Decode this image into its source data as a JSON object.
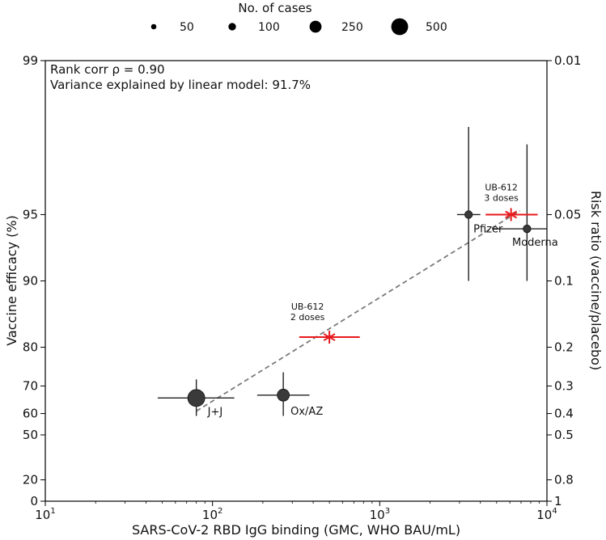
{
  "chart_data": {
    "type": "scatter",
    "x_scale": "log",
    "xlim": [
      10,
      10000
    ],
    "xlabel": "SARS-CoV-2 RBD IgG binding (GMC, WHO BAU/mL)",
    "ylabel": "Vaccine efficacy (%)",
    "ylabel_right": "Risk ratio (vaccine/placebo)",
    "x_ticks": [
      {
        "value": 10,
        "label": "10",
        "exp": "1"
      },
      {
        "value": 100,
        "label": "10",
        "exp": "2"
      },
      {
        "value": 1000,
        "label": "10",
        "exp": "3"
      },
      {
        "value": 10000,
        "label": "10",
        "exp": "4"
      }
    ],
    "y_left_ticks": [
      {
        "value": 99,
        "label": "99"
      },
      {
        "value": 95,
        "label": "95"
      },
      {
        "value": 90,
        "label": "90"
      },
      {
        "value": 80,
        "label": "80"
      },
      {
        "value": 70,
        "label": "70"
      },
      {
        "value": 60,
        "label": "60"
      },
      {
        "value": 50,
        "label": "50"
      },
      {
        "value": 20,
        "label": "20"
      },
      {
        "value": 0,
        "label": "0"
      }
    ],
    "y_right_ticks": [
      {
        "value": 0.01,
        "label": "0.01"
      },
      {
        "value": 0.05,
        "label": "0.05"
      },
      {
        "value": 0.1,
        "label": "0.1"
      },
      {
        "value": 0.2,
        "label": "0.2"
      },
      {
        "value": 0.3,
        "label": "0.3"
      },
      {
        "value": 0.4,
        "label": "0.4"
      },
      {
        "value": 0.5,
        "label": "0.5"
      },
      {
        "value": 0.8,
        "label": "0.8"
      },
      {
        "value": 1,
        "label": "1"
      }
    ],
    "annotations": [
      "Rank corr ρ = 0.90",
      "Variance explained by linear model: 91.7%"
    ],
    "legend": {
      "title": "No. of cases",
      "entries": [
        {
          "label": "50",
          "cases": 50
        },
        {
          "label": "100",
          "cases": 100
        },
        {
          "label": "250",
          "cases": 250
        },
        {
          "label": "500",
          "cases": 500
        }
      ]
    },
    "vaccines": [
      {
        "label": "J+J",
        "gmc": 80,
        "gmc_low": 47,
        "gmc_high": 135,
        "efficacy": 66,
        "eff_low": 59,
        "eff_high": 72,
        "cases": 500
      },
      {
        "label": "Ox/AZ",
        "gmc": 265,
        "gmc_low": 185,
        "gmc_high": 380,
        "efficacy": 67,
        "eff_low": 59,
        "eff_high": 74,
        "cases": 250
      },
      {
        "label": "Pfizer",
        "gmc": 3400,
        "gmc_low": 2900,
        "gmc_high": 4000,
        "efficacy": 95,
        "eff_low": 90,
        "eff_high": 98,
        "cases": 100
      },
      {
        "label": "Moderna",
        "gmc": 7600,
        "gmc_low": 4700,
        "gmc_high": 10000,
        "efficacy": 94.2,
        "eff_low": 90,
        "eff_high": 97.6,
        "cases": 100
      }
    ],
    "ub612": [
      {
        "label_line1": "UB-612",
        "label_line2": "2 doses",
        "gmc": 500,
        "gmc_low": 330,
        "gmc_high": 760,
        "efficacy": 82
      },
      {
        "label_line1": "UB-612",
        "label_line2": "3 doses",
        "gmc": 6100,
        "gmc_low": 4300,
        "gmc_high": 8800,
        "efficacy": 95
      }
    ],
    "fit_line": {
      "x_start": 80,
      "y_start": 61,
      "x_end": 6900,
      "y_end": 95.2
    },
    "colors": {
      "marker": "#3a3a3a",
      "ub612": "#e8191c",
      "fit": "#7a7a7a",
      "axis": "#000000"
    }
  }
}
